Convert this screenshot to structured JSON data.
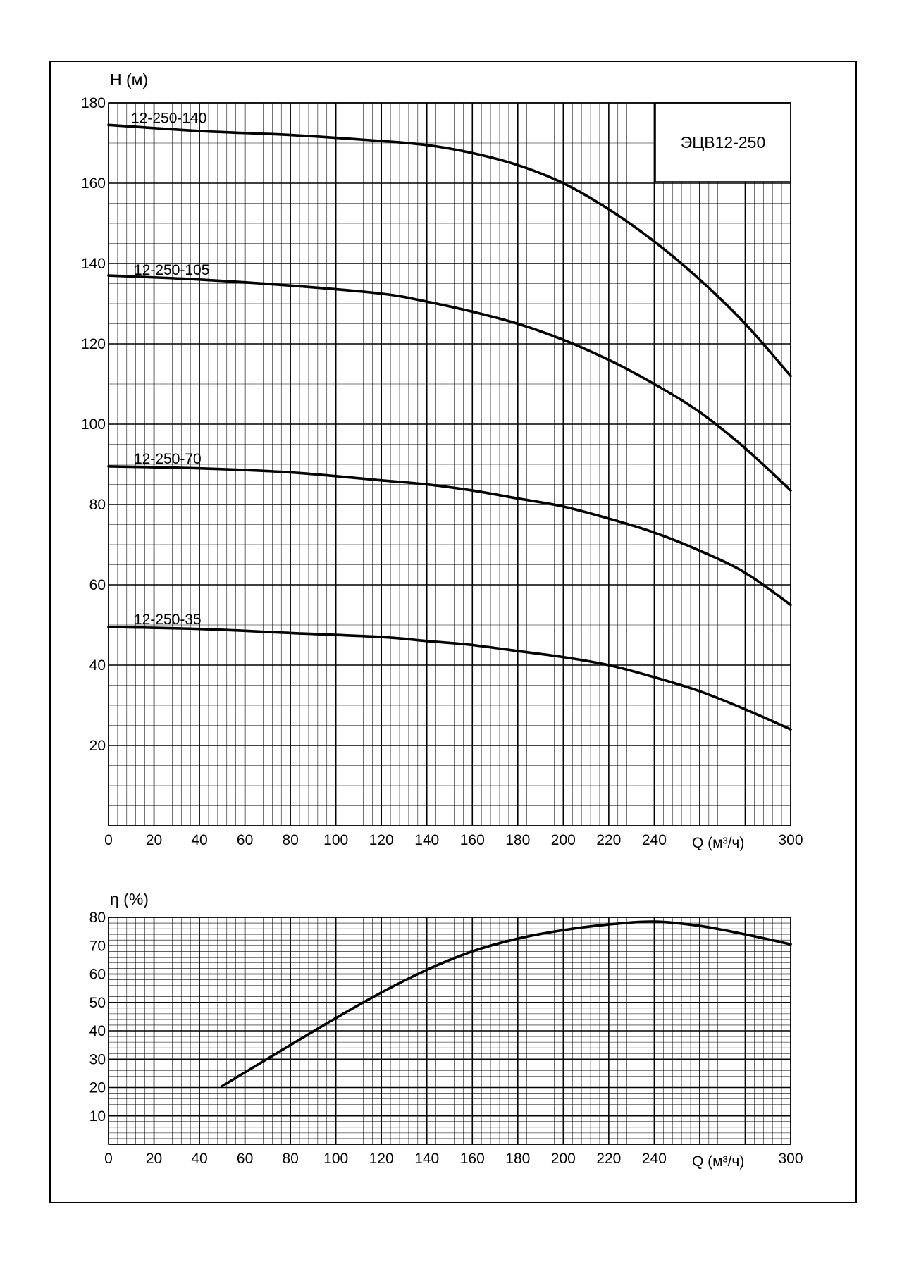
{
  "chart_data": [
    {
      "type": "line",
      "title": "ЭЦВ12-250",
      "xlabel": "Q (м³/ч)",
      "ylabel": "H (м)",
      "xlim": [
        0,
        300
      ],
      "ylim": [
        0,
        180
      ],
      "x_ticks": [
        0,
        20,
        40,
        60,
        80,
        100,
        120,
        140,
        160,
        180,
        200,
        220,
        240,
        300
      ],
      "y_ticks": [
        20,
        40,
        60,
        80,
        100,
        120,
        140,
        160,
        180
      ],
      "grid": true,
      "series": [
        {
          "name": "12-250-140",
          "x": [
            0,
            40,
            80,
            120,
            140,
            160,
            180,
            200,
            220,
            240,
            260,
            280,
            300
          ],
          "y": [
            174.5,
            173,
            172,
            170.5,
            169.5,
            167.5,
            164.5,
            160,
            153.5,
            145.5,
            136,
            125,
            112
          ]
        },
        {
          "name": "12-250-105",
          "x": [
            0,
            40,
            80,
            120,
            140,
            160,
            180,
            200,
            220,
            240,
            260,
            280,
            300
          ],
          "y": [
            137,
            136,
            134.5,
            132.5,
            130.5,
            128,
            125,
            121,
            116,
            110,
            103,
            94,
            83.5
          ]
        },
        {
          "name": "12-250-70",
          "x": [
            0,
            40,
            80,
            120,
            140,
            160,
            180,
            200,
            220,
            240,
            260,
            280,
            300
          ],
          "y": [
            89.5,
            89,
            88,
            86,
            85,
            83.5,
            81.5,
            79.5,
            76.5,
            73,
            68.5,
            63,
            55
          ]
        },
        {
          "name": "12-250-35",
          "x": [
            0,
            40,
            80,
            120,
            140,
            160,
            180,
            200,
            220,
            240,
            260,
            280,
            300
          ],
          "y": [
            49.5,
            49,
            48,
            47,
            46,
            45,
            43.5,
            42,
            40,
            37,
            33.5,
            29,
            24
          ]
        }
      ]
    },
    {
      "type": "line",
      "xlabel": "Q (м³/ч)",
      "ylabel": "η (%)",
      "xlim": [
        0,
        300
      ],
      "ylim": [
        0,
        80
      ],
      "x_ticks": [
        0,
        20,
        40,
        60,
        80,
        100,
        120,
        140,
        160,
        180,
        200,
        220,
        240,
        300
      ],
      "y_ticks": [
        10,
        20,
        30,
        40,
        50,
        60,
        70,
        80
      ],
      "grid": true,
      "series": [
        {
          "x": [
            50,
            80,
            100,
            120,
            140,
            160,
            180,
            200,
            220,
            240,
            260,
            280,
            300
          ],
          "y": [
            20.5,
            35,
            44.5,
            53.5,
            61.5,
            68,
            72.5,
            75.5,
            77.5,
            78.5,
            77,
            74,
            70.5
          ]
        }
      ]
    }
  ]
}
